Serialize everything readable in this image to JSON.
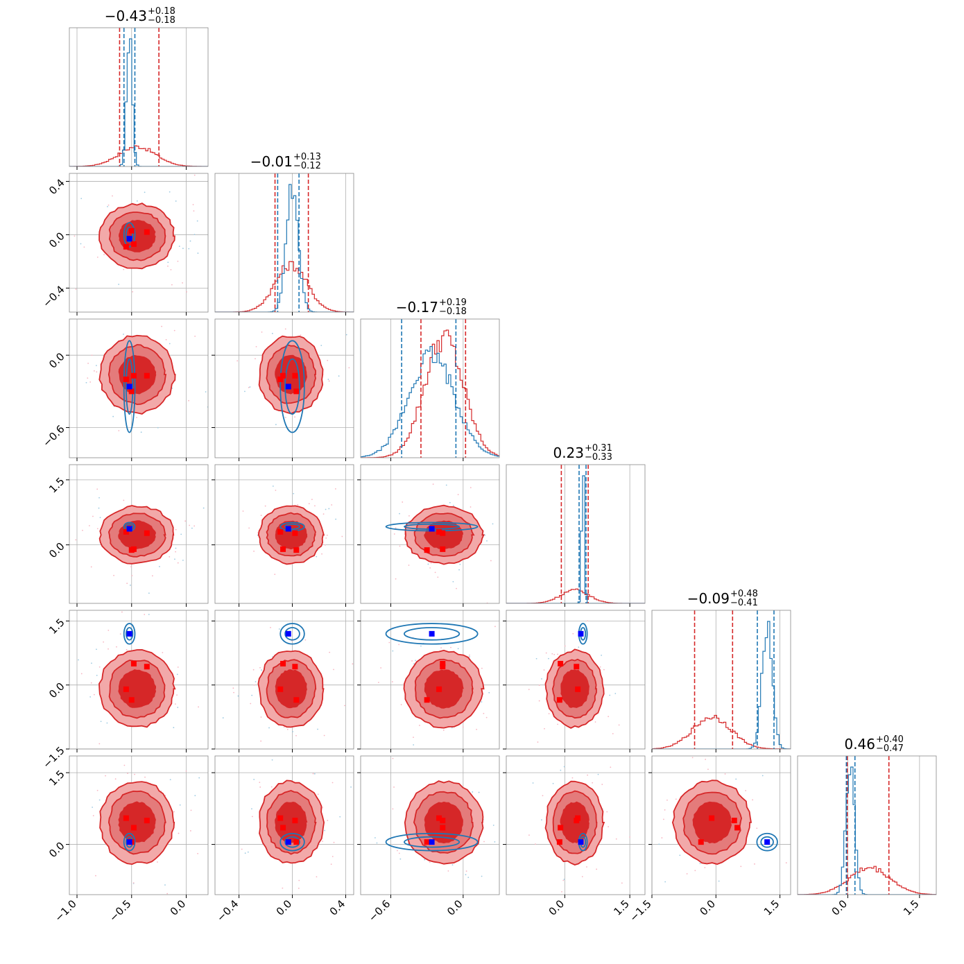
{
  "chart_data": {
    "type": "corner",
    "grid": true,
    "dimensions": 6,
    "panel_titles": [
      {
        "value": "−0.43",
        "sup": "+0.18",
        "sub": "−0.18"
      },
      {
        "value": "−0.01",
        "sup": "+0.13",
        "sub": "−0.12"
      },
      {
        "value": "−0.17",
        "sup": "+0.19",
        "sub": "−0.18"
      },
      {
        "value": "0.23",
        "sup": "+0.31",
        "sub": "−0.33"
      },
      {
        "value": "−0.09",
        "sup": "+0.48",
        "sub": "−0.41"
      },
      {
        "value": "0.46",
        "sup": "+0.40",
        "sub": "−0.47"
      }
    ],
    "ranges": [
      [
        -1.07,
        0.2
      ],
      [
        -0.58,
        0.46
      ],
      [
        -0.85,
        0.3
      ],
      [
        -1.35,
        1.85
      ],
      [
        -1.5,
        1.75
      ],
      [
        -1.05,
        1.85
      ]
    ],
    "x_ticks": [
      [
        -1.0,
        -0.5,
        0.0
      ],
      [
        -0.4,
        0.0,
        0.4
      ],
      [
        -0.6,
        0.0
      ],
      [
        0.0,
        1.5
      ],
      [
        -1.5,
        0.0,
        1.5
      ],
      [
        0.0,
        1.5
      ]
    ],
    "x_tick_labels": [
      [
        "−1.0",
        "−0.5",
        "0.0"
      ],
      [
        "−0.4",
        "0.0",
        "0.4"
      ],
      [
        "−0.6",
        "0.0"
      ],
      [
        "0.0",
        "1.5"
      ],
      [
        "−1.5",
        "0.0",
        "1.5"
      ],
      [
        "0.0",
        "1.5"
      ]
    ],
    "y_ticks": [
      null,
      [
        -0.4,
        0.0,
        0.4
      ],
      [
        -0.6,
        0.0
      ],
      [
        0.0,
        1.5
      ],
      [
        -1.5,
        0.0,
        1.5
      ],
      [
        0.0,
        1.5
      ]
    ],
    "y_tick_labels": [
      null,
      [
        "−0.4",
        "0.0",
        "0.4"
      ],
      [
        "−0.6",
        "0.0"
      ],
      [
        "0.0",
        "1.5"
      ],
      [
        "−1.5",
        "0.0",
        "1.5"
      ],
      [
        "0.0",
        "1.5"
      ]
    ],
    "series": [
      {
        "color": "#d62728",
        "fill_colors": [
          "#f2a9a9",
          "#e47b7b",
          "#d62728"
        ],
        "marginals": [
          {
            "mean": -0.45,
            "sd": 0.17
          },
          {
            "mean": -0.01,
            "sd": 0.12
          },
          {
            "mean": -0.16,
            "sd": 0.16
          },
          {
            "mean": 0.23,
            "sd": 0.33
          },
          {
            "mean": -0.09,
            "sd": 0.45
          },
          {
            "mean": 0.46,
            "sd": 0.43
          }
        ],
        "quantile_lines": [
          [
            -0.61,
            -0.25
          ],
          [
            -0.13,
            0.12
          ],
          [
            -0.35,
            0.02
          ],
          [
            -0.08,
            0.54
          ],
          [
            -0.5,
            0.39
          ],
          [
            -0.01,
            0.86
          ]
        ]
      },
      {
        "color": "#1f77b4",
        "marginals": [
          {
            "mean": -0.52,
            "sd": 0.025
          },
          {
            "mean": 0.0,
            "sd": 0.045
          },
          {
            "mean": -0.26,
            "sd": 0.19
          },
          {
            "mean": 0.42,
            "sd": 0.03
          },
          {
            "mean": 1.2,
            "sd": 0.12
          },
          {
            "mean": 0.05,
            "sd": 0.09
          }
        ],
        "quantile_lines": [
          [
            -0.57,
            -0.47
          ],
          [
            -0.11,
            0.05
          ],
          [
            -0.51,
            -0.06
          ],
          [
            0.33,
            0.49
          ],
          [
            0.97,
            1.36
          ],
          [
            -0.03,
            0.15
          ]
        ]
      }
    ],
    "truth_markers": {
      "blue": {
        "color": "#0000ff",
        "values": [
          -0.52,
          -0.03,
          -0.26,
          0.37,
          1.2,
          0.05
        ]
      },
      "red": {
        "color": "#ff0000",
        "points": [
          [
            -0.55,
            -0.09,
            -0.2,
            0.3,
            -0.1,
            0.55
          ],
          [
            -0.48,
            -0.07,
            -0.17,
            -0.1,
            0.5,
            0.35
          ],
          [
            -0.36,
            0.02,
            -0.17,
            0.27,
            0.43,
            0.5
          ],
          [
            -0.5,
            0.03,
            -0.3,
            -0.12,
            -0.35,
            0.05
          ]
        ]
      }
    }
  }
}
